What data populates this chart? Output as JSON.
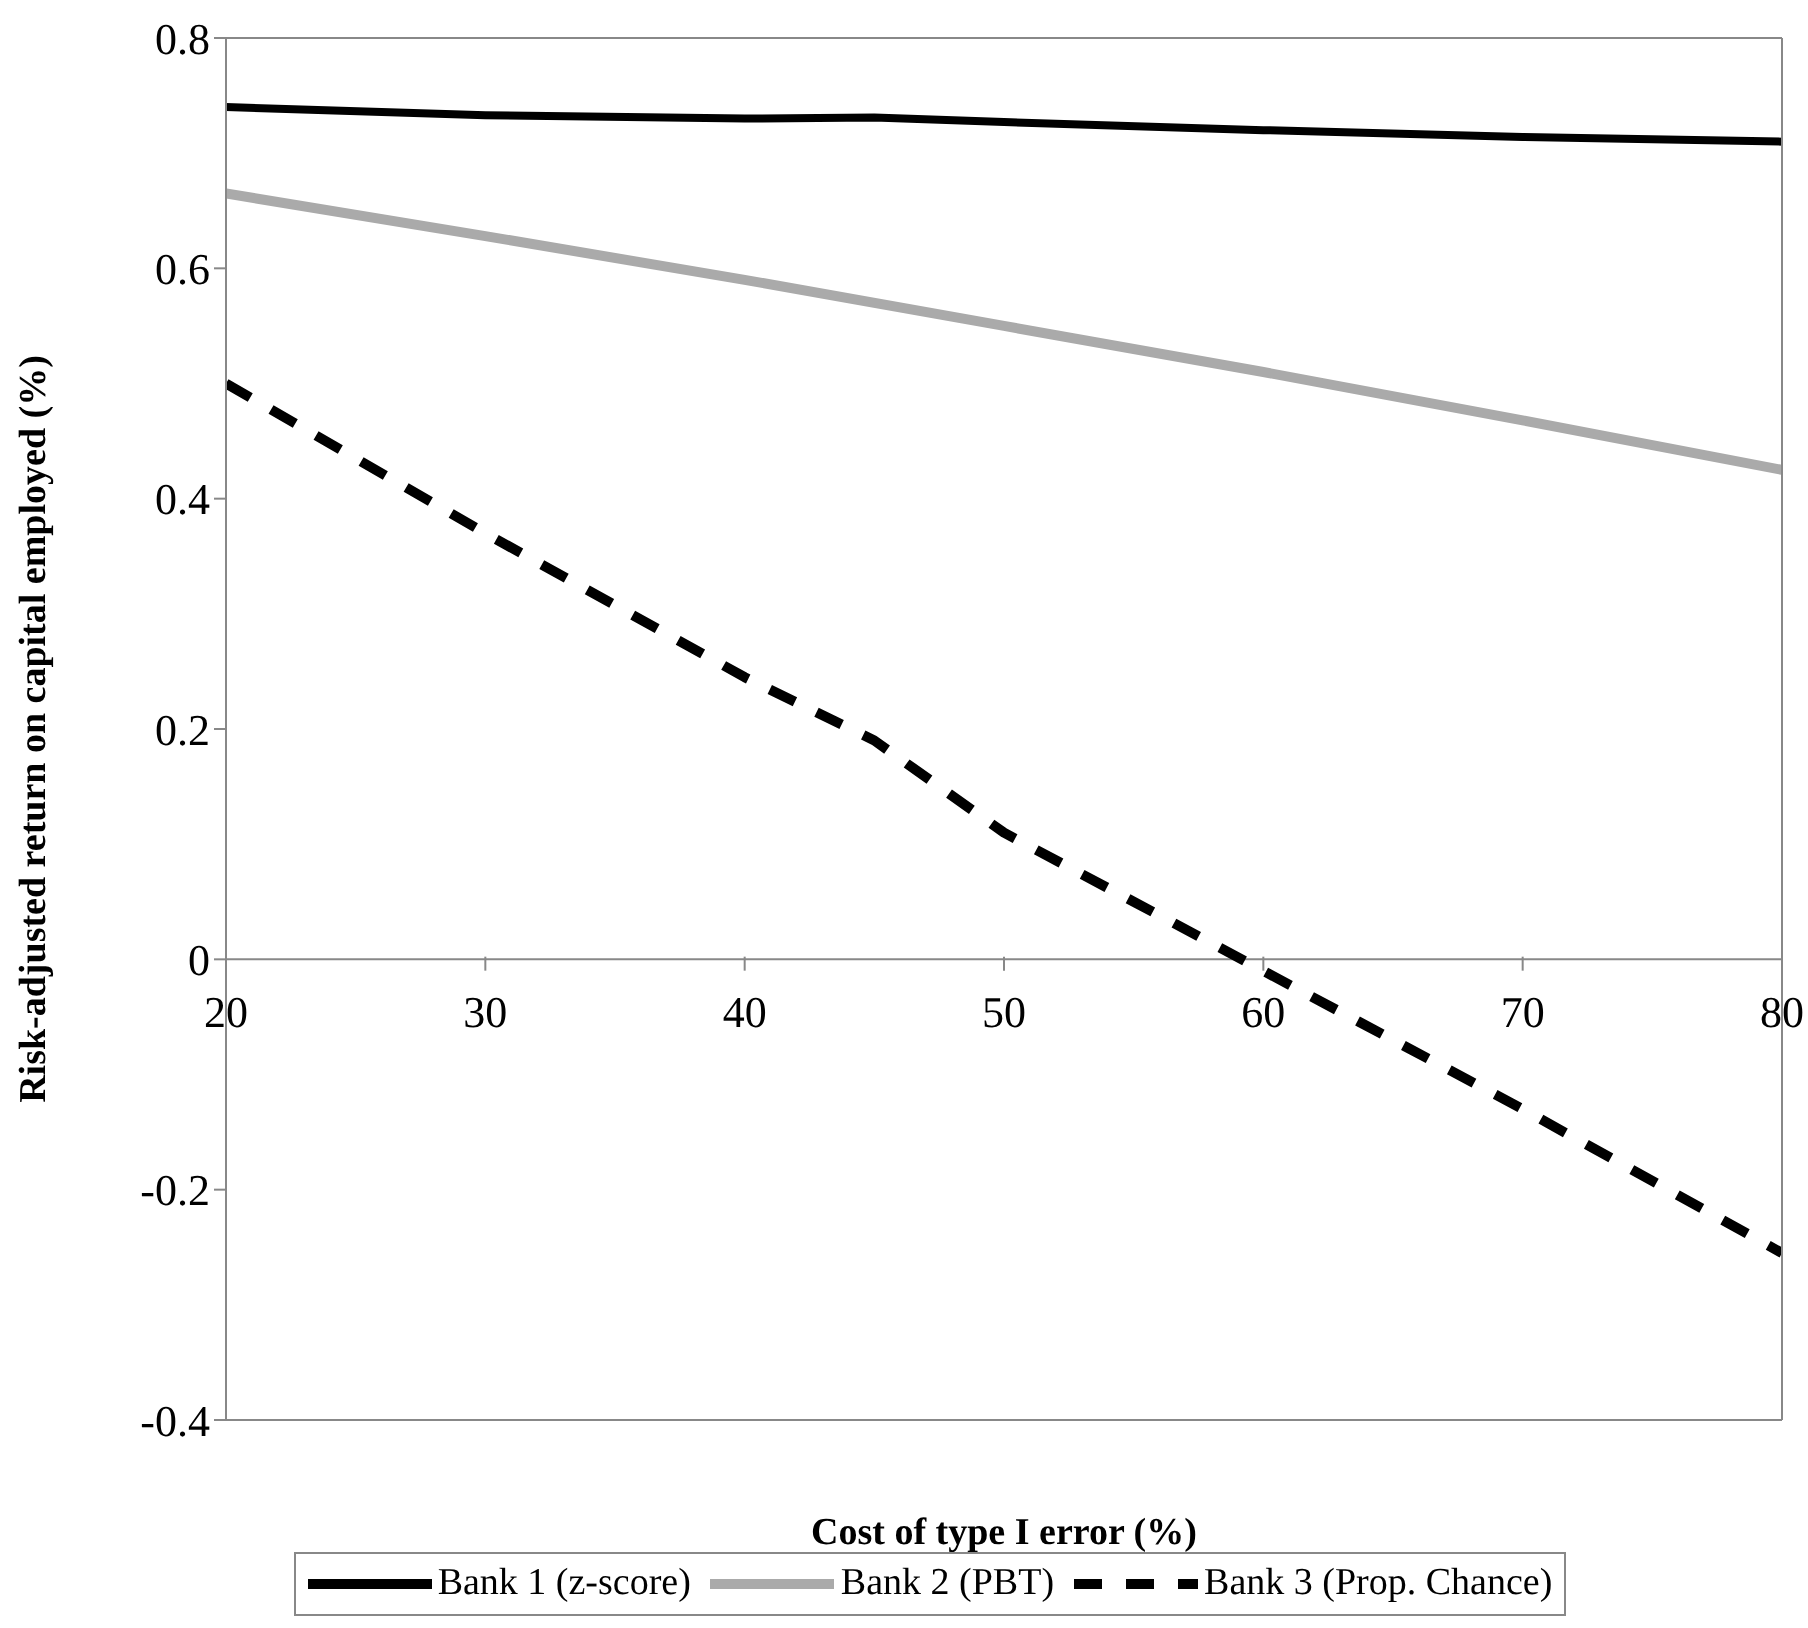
{
  "chart_data": {
    "type": "line",
    "xlabel": "Cost of type I error (%)",
    "ylabel": "Risk-adjusted return on capital employed (%)",
    "xlim": [
      20,
      80
    ],
    "xticks": [
      20,
      30,
      40,
      50,
      60,
      70,
      80
    ],
    "ylim": [
      -0.4,
      0.8
    ],
    "yticks": [
      -0.4,
      -0.2,
      0,
      0.2,
      0.4,
      0.6,
      0.8
    ],
    "legend": "bottom",
    "marker": "none",
    "series": [
      {
        "name": "Bank 1 (z-score)",
        "color": "#000000",
        "line_style": "solid",
        "x": [
          20,
          30,
          40,
          45,
          50,
          60,
          70,
          80
        ],
        "values": [
          0.74,
          0.733,
          0.73,
          0.731,
          0.727,
          0.72,
          0.714,
          0.71
        ]
      },
      {
        "name": "Bank 2 (PBT)",
        "color": "#aaaaaa",
        "line_style": "solid",
        "x": [
          20,
          30,
          40,
          50,
          60,
          70,
          80
        ],
        "values": [
          0.665,
          0.628,
          0.59,
          0.55,
          0.51,
          0.468,
          0.425
        ]
      },
      {
        "name": "Bank 3 (Prop. Chance)",
        "color": "#000000",
        "line_style": "dashed",
        "x": [
          20,
          30,
          40,
          45,
          50,
          60,
          70,
          80
        ],
        "values": [
          0.5,
          0.37,
          0.245,
          0.19,
          0.11,
          -0.01,
          -0.13,
          -0.255
        ]
      }
    ]
  }
}
